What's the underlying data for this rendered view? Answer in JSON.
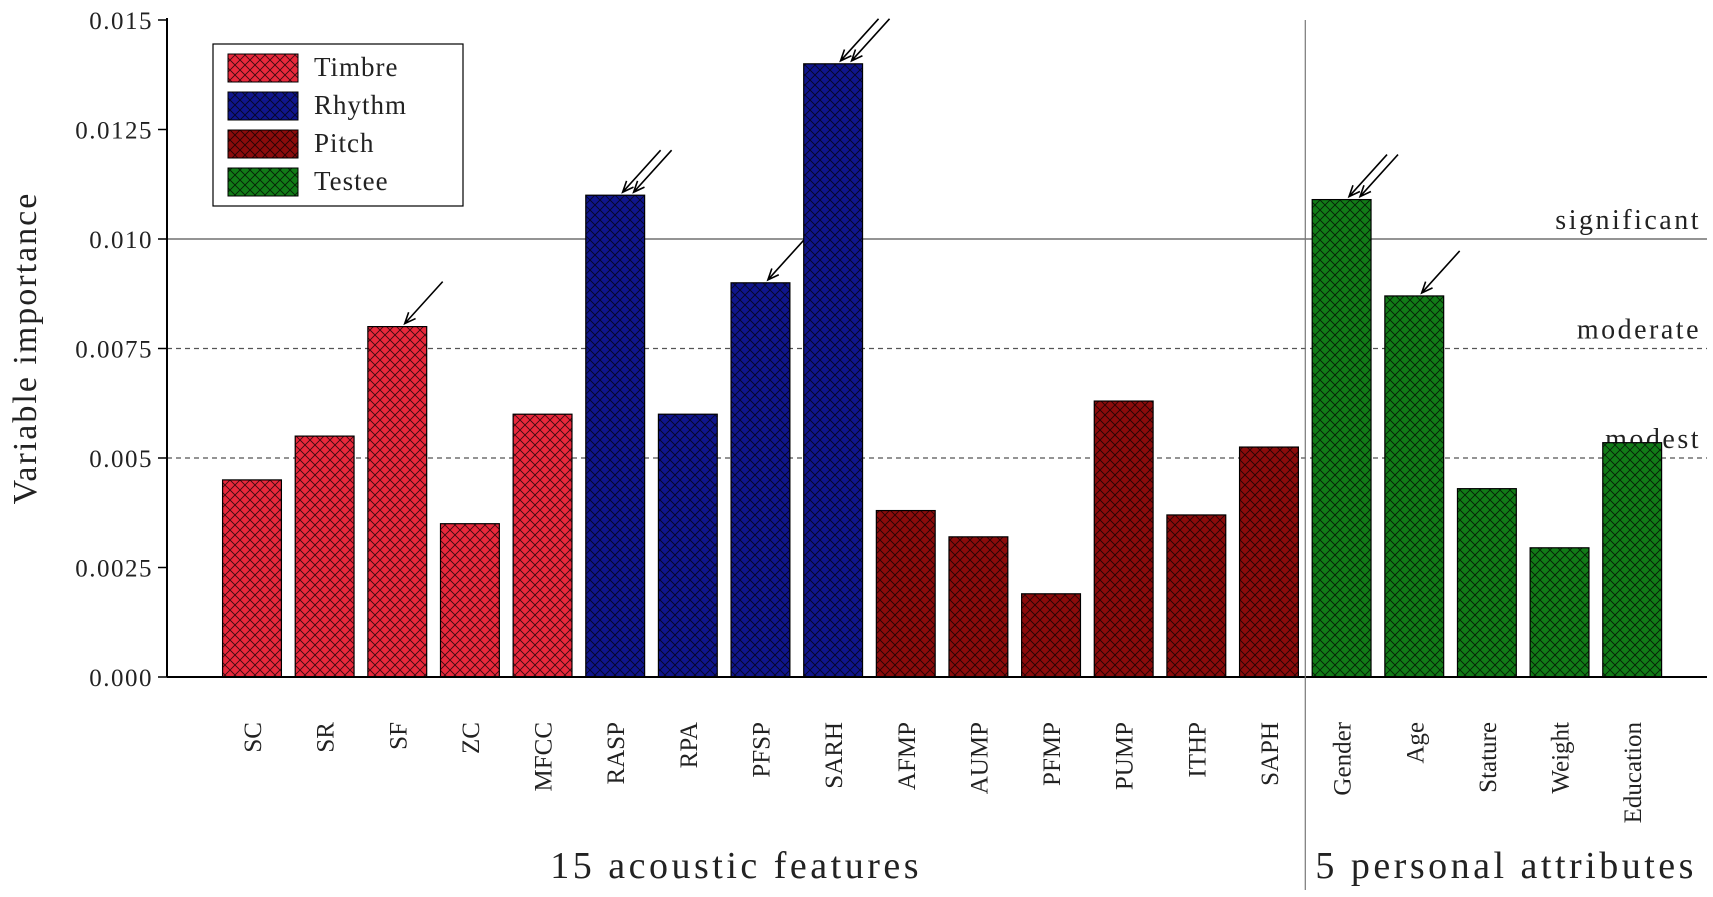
{
  "chart_data": {
    "type": "bar",
    "y_label": "Variable importance",
    "groups": [
      {
        "label": "15 acoustic features",
        "categories": [
          "SC",
          "SR",
          "SF",
          "ZC",
          "MFCC",
          "RASP",
          "RPA",
          "PFSP",
          "SARH",
          "AFMP",
          "AUMP",
          "PFMP",
          "PUMP",
          "ITHP",
          "SAPH"
        ]
      },
      {
        "label": "5 personal attributes",
        "categories": [
          "Gender",
          "Age",
          "Stature",
          "Weight",
          "Education"
        ]
      }
    ],
    "series": [
      {
        "name": "Timbre",
        "color": "#e8293c",
        "values": [
          0.0045,
          0.0055,
          0.008,
          0.0035,
          0.006,
          null,
          null,
          null,
          null,
          null,
          null,
          null,
          null,
          null,
          null,
          null,
          null,
          null,
          null,
          null
        ]
      },
      {
        "name": "Rhythm",
        "color": "#10168c",
        "values": [
          null,
          null,
          null,
          null,
          null,
          0.011,
          0.006,
          0.009,
          0.014,
          null,
          null,
          null,
          null,
          null,
          null,
          null,
          null,
          null,
          null,
          null
        ]
      },
      {
        "name": "Pitch",
        "color": "#8b0c0c",
        "values": [
          null,
          null,
          null,
          null,
          null,
          null,
          null,
          null,
          null,
          0.0038,
          0.0032,
          0.0019,
          0.0063,
          0.0037,
          0.00525,
          null,
          null,
          null,
          null,
          null
        ]
      },
      {
        "name": "Testee",
        "color": "#127c18",
        "values": [
          null,
          null,
          null,
          null,
          null,
          null,
          null,
          null,
          null,
          null,
          null,
          null,
          null,
          null,
          null,
          0.0109,
          0.0087,
          0.0043,
          0.00295,
          0.00535
        ]
      }
    ],
    "ylim": [
      0,
      0.015
    ],
    "yticks": [
      {
        "value": 0,
        "label": "0.000"
      },
      0.0025,
      0.005,
      0.0075,
      {
        "value": 0.01,
        "label": "0.010"
      },
      0.0125,
      0.015
    ],
    "reference_lines": [
      {
        "value": 0.01,
        "label": "significant",
        "style": "solid"
      },
      {
        "value": 0.0075,
        "label": "moderate",
        "style": "dashed"
      },
      {
        "value": 0.005,
        "label": "modest",
        "style": "dashed"
      }
    ],
    "hatch": true,
    "legend": "top-left"
  }
}
